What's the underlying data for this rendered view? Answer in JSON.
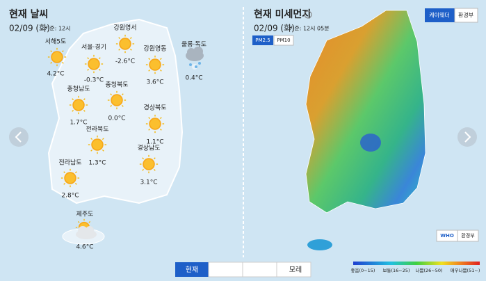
{
  "weather": {
    "title": "현재 날씨",
    "date": "02/09 (화)",
    "basis": "기준: 12시",
    "regions": [
      {
        "name": "서해5도",
        "temp": "4.2°C"
      },
      {
        "name": "서울·경기",
        "temp": "-0.3°C"
      },
      {
        "name": "강원영서",
        "temp": "-2.6°C"
      },
      {
        "name": "강원영동",
        "temp": "3.6°C"
      },
      {
        "name": "울릉·독도",
        "temp": "0.4°C"
      },
      {
        "name": "충청남도",
        "temp": "1.7°C"
      },
      {
        "name": "충청북도",
        "temp": "0.0°C"
      },
      {
        "name": "경상북도",
        "temp": "1.1°C"
      },
      {
        "name": "전라북도",
        "temp": "1.3°C"
      },
      {
        "name": "경상남도",
        "temp": "3.1°C"
      },
      {
        "name": "전라남도",
        "temp": "2.8°C"
      },
      {
        "name": "제주도",
        "temp": "4.6°C"
      }
    ]
  },
  "dust": {
    "title": "현재 미세먼지",
    "date": "02/09 (화)",
    "basis": "기준: 12시 05분",
    "sources": [
      "케이웨더",
      "환경부"
    ],
    "pm_tabs": [
      "PM2.5",
      "PM10"
    ],
    "standards": [
      "WHO",
      "환경부"
    ],
    "legend": [
      "좋음(0~15)",
      "보통(16~25)",
      "나쁨(26~50)",
      "매우나쁨(51~)"
    ]
  },
  "day_tabs": {
    "first": "현재",
    "last": "모레"
  }
}
